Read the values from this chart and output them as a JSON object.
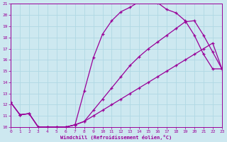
{
  "xlabel": "Windchill (Refroidissement éolien,°C)",
  "ylabel": "",
  "xlim": [
    0,
    23
  ],
  "ylim": [
    10,
    21
  ],
  "xticks": [
    0,
    1,
    2,
    3,
    4,
    5,
    6,
    7,
    8,
    9,
    10,
    11,
    12,
    13,
    14,
    15,
    16,
    17,
    18,
    19,
    20,
    21,
    22,
    23
  ],
  "yticks": [
    10,
    11,
    12,
    13,
    14,
    15,
    16,
    17,
    18,
    19,
    20,
    21
  ],
  "color": "#990099",
  "bg_color": "#cde8f0",
  "grid_color": "#b0d8e4",
  "curve1_x": [
    0,
    1,
    2,
    3,
    4,
    5,
    6,
    7,
    8,
    9,
    10,
    11,
    12,
    13,
    14,
    15,
    16,
    17,
    18,
    19,
    20,
    21,
    22,
    23
  ],
  "curve1_y": [
    12.2,
    11.1,
    11.2,
    10.0,
    10.0,
    10.0,
    10.0,
    10.2,
    13.2,
    16.2,
    18.3,
    19.5,
    20.3,
    20.7,
    21.2,
    21.2,
    21.1,
    20.5,
    20.2,
    19.5,
    18.2,
    16.5,
    15.2,
    15.2
  ],
  "curve2_x": [
    0,
    1,
    2,
    3,
    4,
    5,
    6,
    7,
    8,
    9,
    10,
    11,
    12,
    13,
    14,
    15,
    16,
    17,
    18,
    19,
    20,
    21,
    22,
    23
  ],
  "curve2_y": [
    12.2,
    11.1,
    11.2,
    10.0,
    10.0,
    10.0,
    10.0,
    10.2,
    10.5,
    11.5,
    12.5,
    13.5,
    14.5,
    15.5,
    16.3,
    17.0,
    17.6,
    18.2,
    18.8,
    19.4,
    19.5,
    18.2,
    16.7,
    15.2
  ],
  "curve3_x": [
    0,
    1,
    2,
    3,
    4,
    5,
    6,
    7,
    8,
    9,
    10,
    11,
    12,
    13,
    14,
    15,
    16,
    17,
    18,
    19,
    20,
    21,
    22,
    23
  ],
  "curve3_y": [
    12.2,
    11.1,
    11.2,
    10.0,
    10.0,
    10.0,
    10.0,
    10.2,
    10.5,
    11.0,
    11.5,
    12.0,
    12.5,
    13.0,
    13.5,
    14.0,
    14.5,
    15.0,
    15.5,
    16.0,
    16.5,
    17.0,
    17.5,
    15.2
  ]
}
